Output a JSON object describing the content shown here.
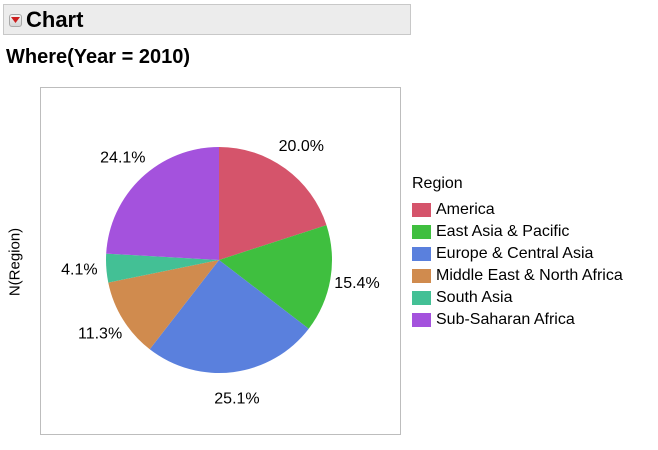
{
  "outline": {
    "title": "Chart"
  },
  "where_label": "Where(Year = 2010)",
  "chart_data": {
    "type": "pie",
    "ylabel": "N(Region)",
    "legend_title": "Region",
    "legend_position": "right",
    "categories": [
      "America",
      "East Asia & Pacific",
      "Europe & Central Asia",
      "Middle East & North Africa",
      "South Asia",
      "Sub-Saharan Africa"
    ],
    "values": [
      20.0,
      15.4,
      25.1,
      11.3,
      4.1,
      24.1
    ],
    "labels": [
      "20.0%",
      "15.4%",
      "25.1%",
      "11.3%",
      "4.1%",
      "24.1%"
    ],
    "colors": [
      "#d5546b",
      "#3fbf3f",
      "#5a80dd",
      "#d08b4e",
      "#43c095",
      "#a452dd"
    ]
  }
}
